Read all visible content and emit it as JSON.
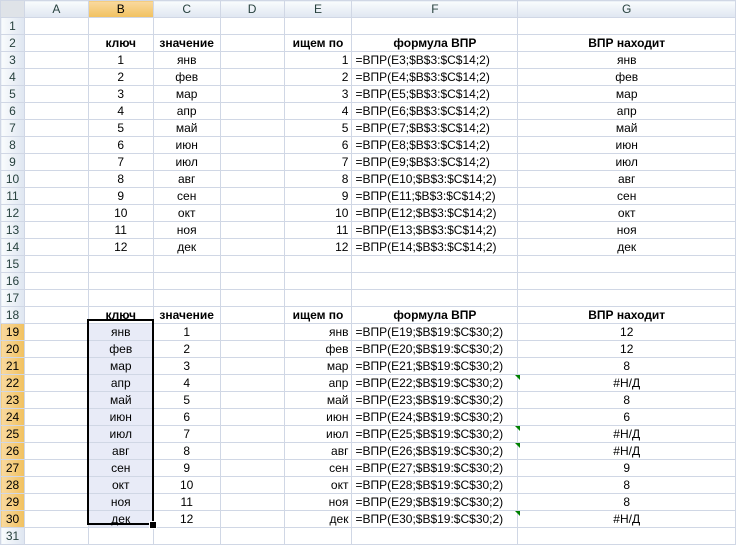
{
  "columns": [
    "A",
    "B",
    "C",
    "D",
    "E",
    "F",
    "G"
  ],
  "selected_column": "B",
  "selected_rows_from": 19,
  "selected_rows_to": 30,
  "rows": [
    {
      "n": "1",
      "B": "",
      "C": "",
      "E": "",
      "F": "",
      "G": ""
    },
    {
      "n": "2",
      "B": "ключ",
      "C": "значение",
      "E": "ищем по",
      "F": "формула ВПР",
      "G": "ВПР находит",
      "header": true
    },
    {
      "n": "3",
      "B": "1",
      "C": "янв",
      "E": "1",
      "F": "=ВПР(E3;$B$3:$C$14;2)",
      "G": "янв"
    },
    {
      "n": "4",
      "B": "2",
      "C": "фев",
      "E": "2",
      "F": "=ВПР(E4;$B$3:$C$14;2)",
      "G": "фев"
    },
    {
      "n": "5",
      "B": "3",
      "C": "мар",
      "E": "3",
      "F": "=ВПР(E5;$B$3:$C$14;2)",
      "G": "мар"
    },
    {
      "n": "6",
      "B": "4",
      "C": "апр",
      "E": "4",
      "F": "=ВПР(E6;$B$3:$C$14;2)",
      "G": "апр"
    },
    {
      "n": "7",
      "B": "5",
      "C": "май",
      "E": "5",
      "F": "=ВПР(E7;$B$3:$C$14;2)",
      "G": "май"
    },
    {
      "n": "8",
      "B": "6",
      "C": "июн",
      "E": "6",
      "F": "=ВПР(E8;$B$3:$C$14;2)",
      "G": "июн"
    },
    {
      "n": "9",
      "B": "7",
      "C": "июл",
      "E": "7",
      "F": "=ВПР(E9;$B$3:$C$14;2)",
      "G": "июл"
    },
    {
      "n": "10",
      "B": "8",
      "C": "авг",
      "E": "8",
      "F": "=ВПР(E10;$B$3:$C$14;2)",
      "G": "авг"
    },
    {
      "n": "11",
      "B": "9",
      "C": "сен",
      "E": "9",
      "F": "=ВПР(E11;$B$3:$C$14;2)",
      "G": "сен"
    },
    {
      "n": "12",
      "B": "10",
      "C": "окт",
      "E": "10",
      "F": "=ВПР(E12;$B$3:$C$14;2)",
      "G": "окт"
    },
    {
      "n": "13",
      "B": "11",
      "C": "ноя",
      "E": "11",
      "F": "=ВПР(E13;$B$3:$C$14;2)",
      "G": "ноя"
    },
    {
      "n": "14",
      "B": "12",
      "C": "дек",
      "E": "12",
      "F": "=ВПР(E14;$B$3:$C$14;2)",
      "G": "дек"
    },
    {
      "n": "15",
      "B": "",
      "C": "",
      "E": "",
      "F": "",
      "G": ""
    },
    {
      "n": "16",
      "B": "",
      "C": "",
      "E": "",
      "F": "",
      "G": ""
    },
    {
      "n": "17",
      "B": "",
      "C": "",
      "E": "",
      "F": "",
      "G": ""
    },
    {
      "n": "18",
      "B": "ключ",
      "C": "значение",
      "E": "ищем по",
      "F": "формула ВПР",
      "G": "ВПР находит",
      "header": true
    },
    {
      "n": "19",
      "B": "янв",
      "C": "1",
      "E": "янв",
      "F": "=ВПР(E19;$B$19:$C$30;2)",
      "G": "12"
    },
    {
      "n": "20",
      "B": "фев",
      "C": "2",
      "E": "фев",
      "F": "=ВПР(E20;$B$19:$C$30;2)",
      "G": "12"
    },
    {
      "n": "21",
      "B": "мар",
      "C": "3",
      "E": "мар",
      "F": "=ВПР(E21;$B$19:$C$30;2)",
      "G": "8"
    },
    {
      "n": "22",
      "B": "апр",
      "C": "4",
      "E": "апр",
      "F": "=ВПР(E22;$B$19:$C$30;2)",
      "G": "#Н/Д",
      "flag": true
    },
    {
      "n": "23",
      "B": "май",
      "C": "5",
      "E": "май",
      "F": "=ВПР(E23;$B$19:$C$30;2)",
      "G": "8"
    },
    {
      "n": "24",
      "B": "июн",
      "C": "6",
      "E": "июн",
      "F": "=ВПР(E24;$B$19:$C$30;2)",
      "G": "6"
    },
    {
      "n": "25",
      "B": "июл",
      "C": "7",
      "E": "июл",
      "F": "=ВПР(E25;$B$19:$C$30;2)",
      "G": "#Н/Д",
      "flag": true
    },
    {
      "n": "26",
      "B": "авг",
      "C": "8",
      "E": "авг",
      "F": "=ВПР(E26;$B$19:$C$30;2)",
      "G": "#Н/Д",
      "flag": true
    },
    {
      "n": "27",
      "B": "сен",
      "C": "9",
      "E": "сен",
      "F": "=ВПР(E27;$B$19:$C$30;2)",
      "G": "9"
    },
    {
      "n": "28",
      "B": "окт",
      "C": "10",
      "E": "окт",
      "F": "=ВПР(E28;$B$19:$C$30;2)",
      "G": "8"
    },
    {
      "n": "29",
      "B": "ноя",
      "C": "11",
      "E": "ноя",
      "F": "=ВПР(E29;$B$19:$C$30;2)",
      "G": "8"
    },
    {
      "n": "30",
      "B": "дек",
      "C": "12",
      "E": "дек",
      "F": "=ВПР(E30;$B$19:$C$30;2)",
      "G": "#Н/Д",
      "flag": true
    },
    {
      "n": "31",
      "B": "",
      "C": "",
      "E": "",
      "F": "",
      "G": ""
    }
  ],
  "colors": {
    "header_bg": "#dfe6f1",
    "selected_header": "#f1c15f",
    "selection_fill": "#e8ebf7",
    "error_flag": "#008000"
  }
}
